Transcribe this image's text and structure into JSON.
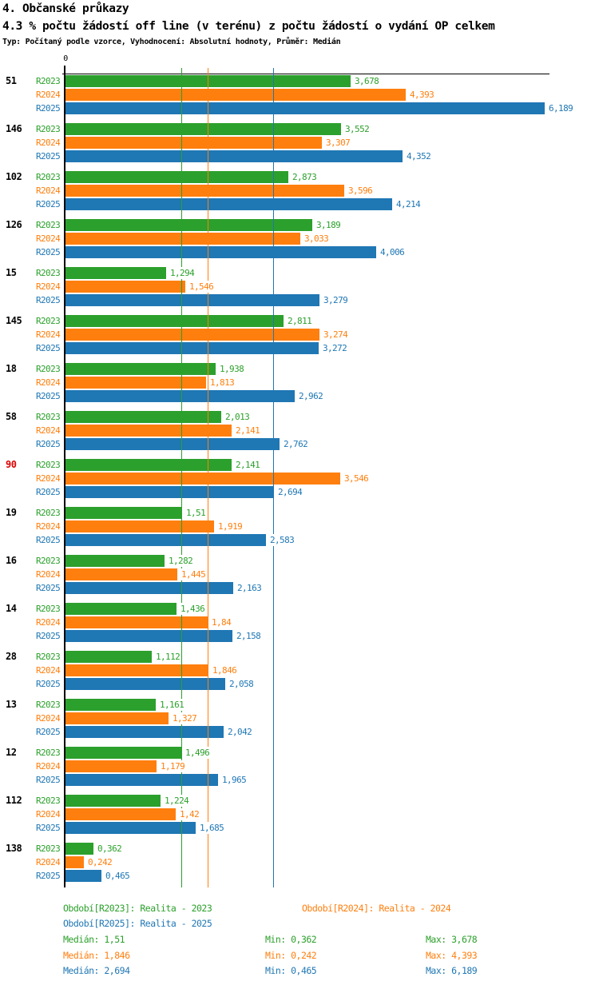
{
  "header": {
    "title": "4. Občanské průkazy",
    "subtitle": "4.3 % počtu žádostí off line (v terénu) z počtu žádostí o vydání OP celkem",
    "meta": "Typ: Počítaný podle vzorce, Vyhodnocení: Absolutní hodnoty, Průměr: Medián"
  },
  "colors": {
    "r2023": "#2CA02C",
    "r2024": "#FF7F0E",
    "r2025": "#1F77B4",
    "highlighted_category": "#DD0000",
    "axis": "#000000",
    "category_label": "#000000"
  },
  "axis": {
    "zero_label": "0"
  },
  "chart_data": {
    "type": "bar",
    "orientation": "horizontal",
    "xlim": [
      0,
      6.25
    ],
    "grid": false,
    "categories": [
      "51",
      "146",
      "102",
      "126",
      "15",
      "145",
      "18",
      "58",
      "90",
      "19",
      "16",
      "14",
      "28",
      "13",
      "12",
      "112",
      "138"
    ],
    "highlighted_category": "90",
    "series": [
      {
        "name": "R2023",
        "color": "#2CA02C",
        "median": 1.51,
        "min": 0.362,
        "max": 3.678,
        "values": [
          3.678,
          3.552,
          2.873,
          3.189,
          1.294,
          2.811,
          1.938,
          2.013,
          2.141,
          1.51,
          1.282,
          1.436,
          1.112,
          1.161,
          1.496,
          1.224,
          0.362
        ],
        "value_labels": [
          "3,678",
          "3,552",
          "2,873",
          "3,189",
          "1,294",
          "2,811",
          "1,938",
          "2,013",
          "2,141",
          "1,51",
          "1,282",
          "1,436",
          "1,112",
          "1,161",
          "1,496",
          "1,224",
          "0,362"
        ]
      },
      {
        "name": "R2024",
        "color": "#FF7F0E",
        "median": 1.846,
        "min": 0.242,
        "max": 4.393,
        "values": [
          4.393,
          3.307,
          3.596,
          3.033,
          1.546,
          3.274,
          1.813,
          2.141,
          3.546,
          1.919,
          1.445,
          1.84,
          1.846,
          1.327,
          1.179,
          1.42,
          0.242
        ],
        "value_labels": [
          "4,393",
          "3,307",
          "3,596",
          "3,033",
          "1,546",
          "3,274",
          "1,813",
          "2,141",
          "3,546",
          "1,919",
          "1,445",
          "1,84",
          "1,846",
          "1,327",
          "1,179",
          "1,42",
          "0,242"
        ]
      },
      {
        "name": "R2025",
        "color": "#1F77B4",
        "median": 2.694,
        "min": 0.465,
        "max": 6.189,
        "values": [
          6.189,
          4.352,
          4.214,
          4.006,
          3.279,
          3.272,
          2.962,
          2.762,
          2.694,
          2.583,
          2.163,
          2.158,
          2.058,
          2.042,
          1.965,
          1.685,
          0.465
        ],
        "value_labels": [
          "6,189",
          "4,352",
          "4,214",
          "4,006",
          "3,279",
          "3,272",
          "2,962",
          "2,762",
          "2,694",
          "2,583",
          "2,163",
          "2,158",
          "2,058",
          "2,042",
          "1,965",
          "1,685",
          "0,465"
        ]
      }
    ]
  },
  "legend": {
    "r2023": "Období[R2023]: Realita - 2023",
    "r2024": "Období[R2024]: Realita - 2024",
    "r2025": "Období[R2025]: Realita - 2025"
  },
  "stats": [
    {
      "median": "Medián: 1,51",
      "min": "Min: 0,362",
      "max": "Max: 3,678"
    },
    {
      "median": "Medián: 1,846",
      "min": "Min: 0,242",
      "max": "Max: 4,393"
    },
    {
      "median": "Medián: 2,694",
      "min": "Min: 0,465",
      "max": "Max: 6,189"
    }
  ]
}
